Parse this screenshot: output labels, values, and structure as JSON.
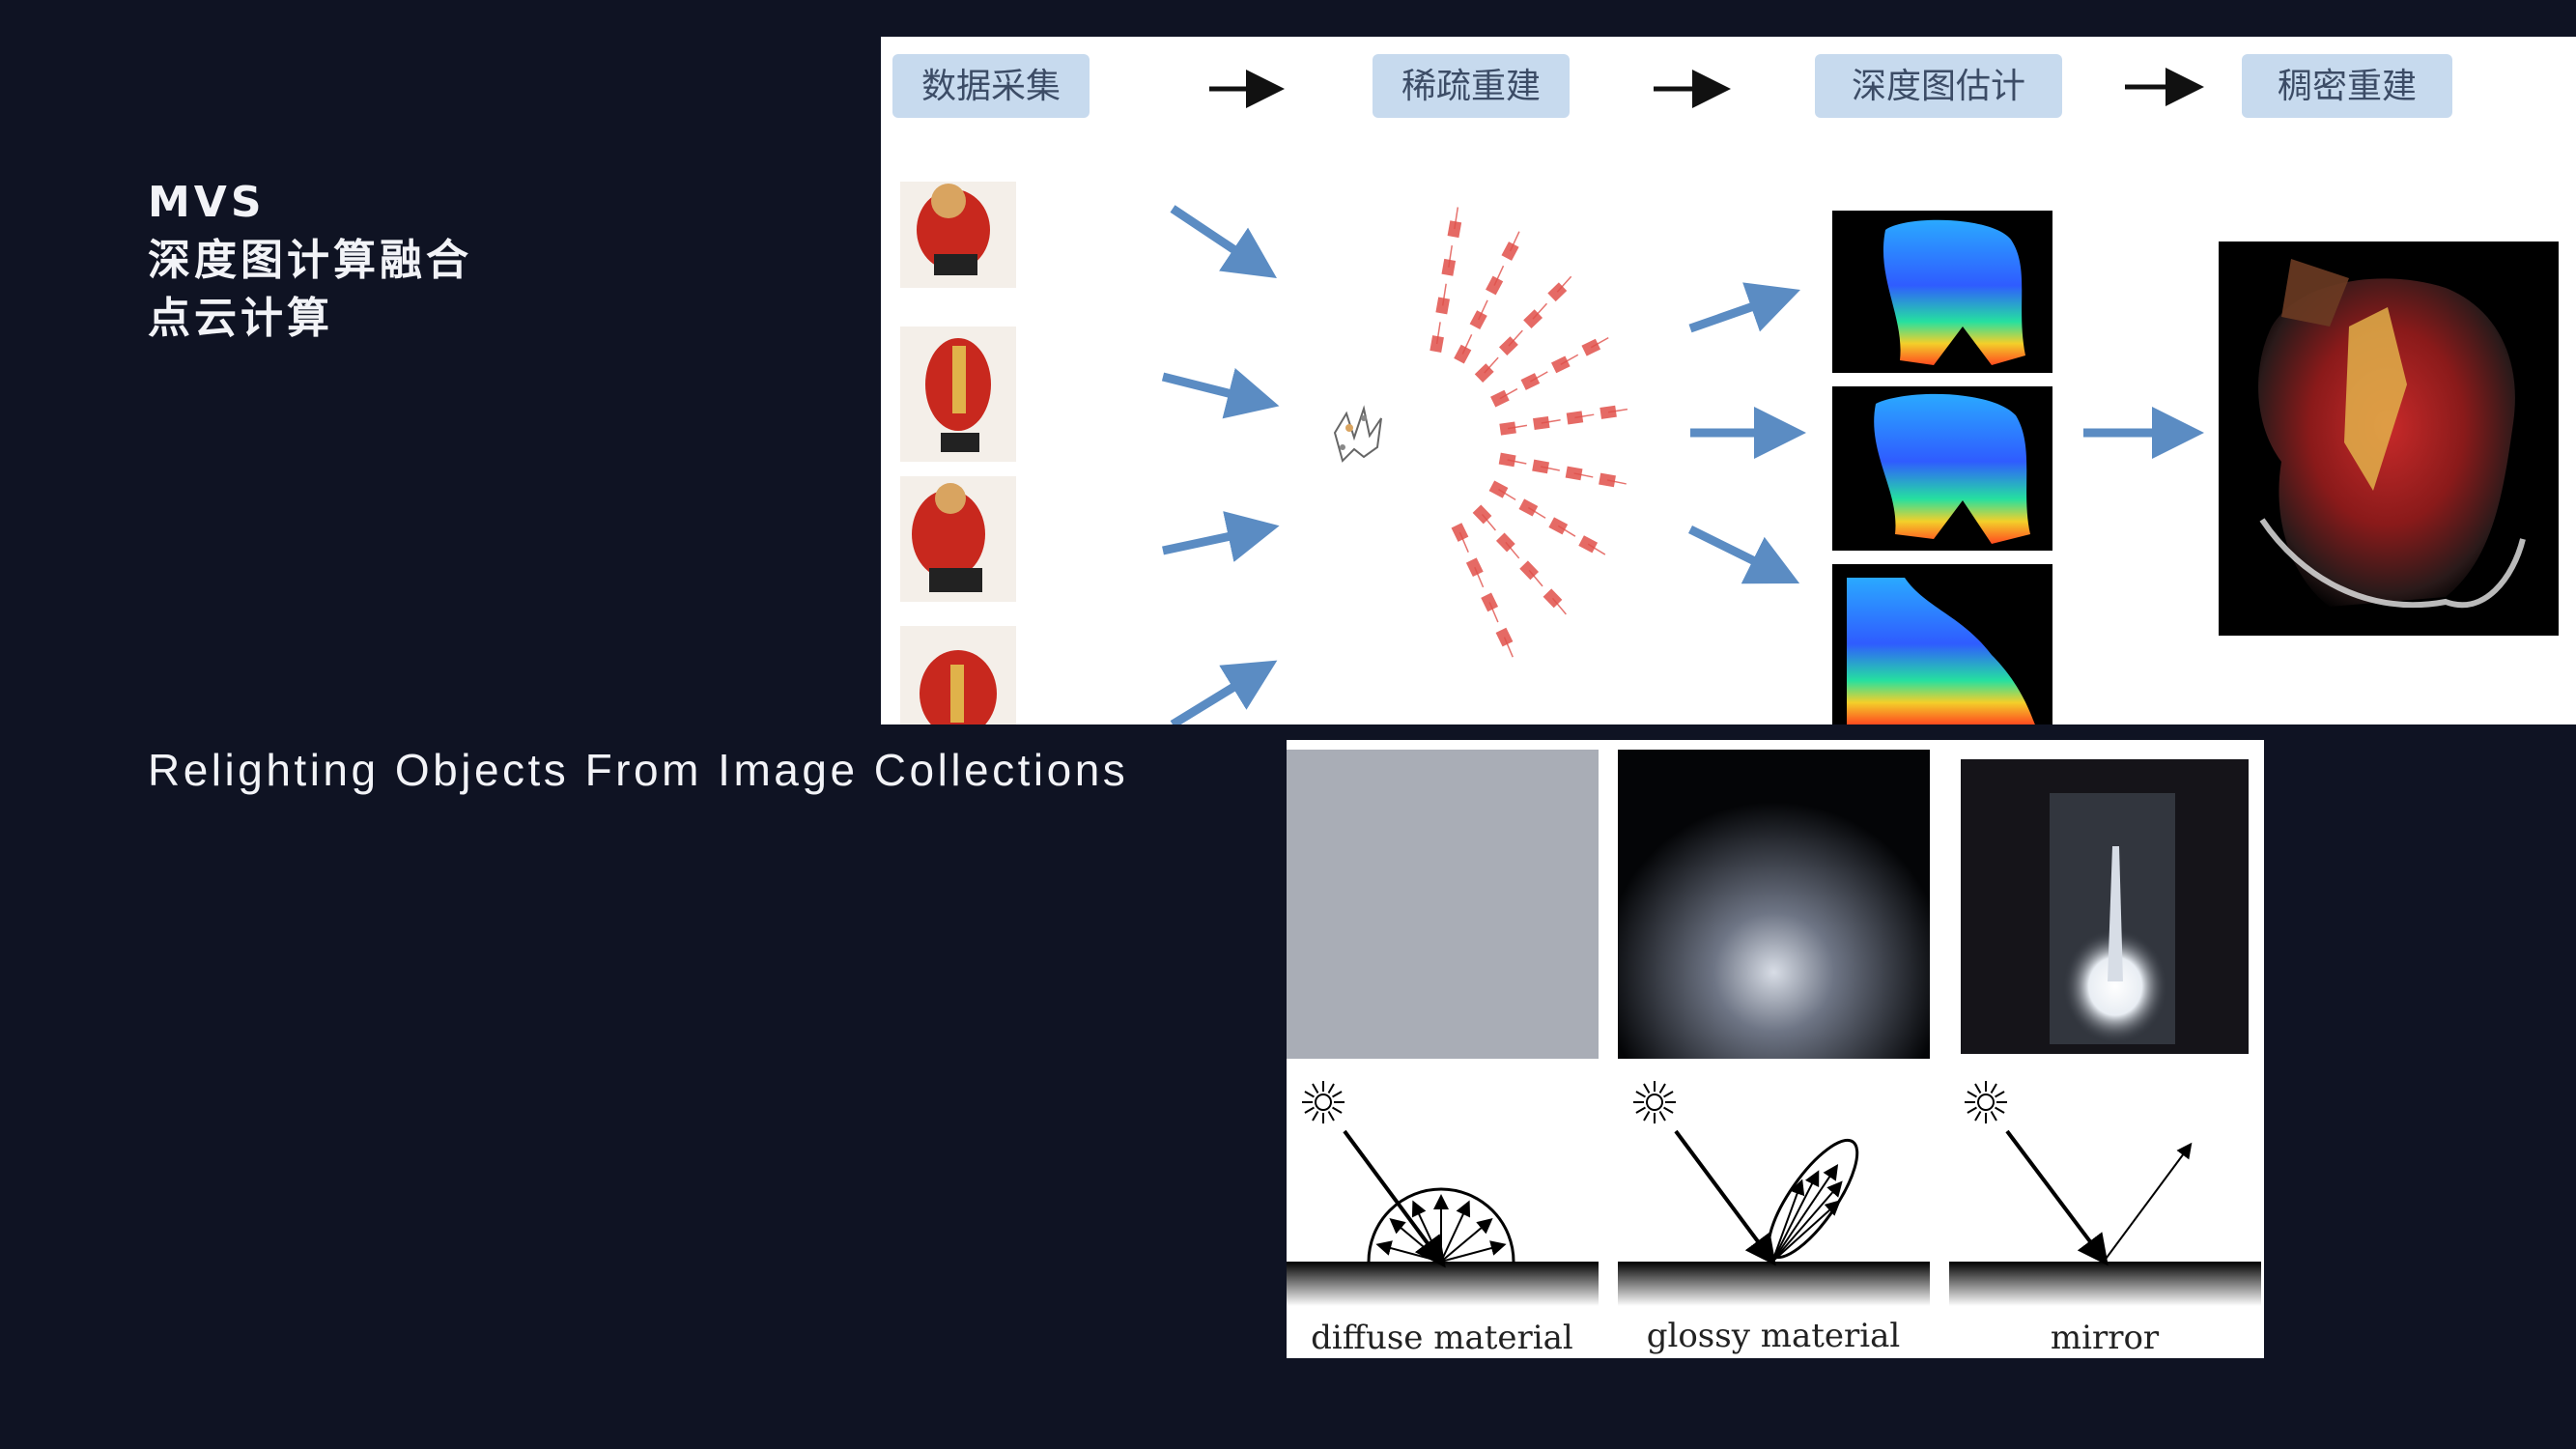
{
  "colors": {
    "background": "#0f1323",
    "text": "#f2f3f7",
    "stage_box": "#c7daee",
    "stage_text": "#3c4c66",
    "flow_arrow": "#5b8cc3",
    "camera": "#e0504a"
  },
  "mvs": {
    "heading_lines": [
      "MVS",
      "深度图计算融合",
      "点云计算"
    ],
    "pipeline_stages": [
      "数据采集",
      "稀疏重建",
      "深度图估计",
      "稠密重建"
    ]
  },
  "relighting": {
    "heading": "Relighting Objects From Image Collections",
    "materials": [
      "diffuse material",
      "glossy material",
      "mirror"
    ]
  }
}
